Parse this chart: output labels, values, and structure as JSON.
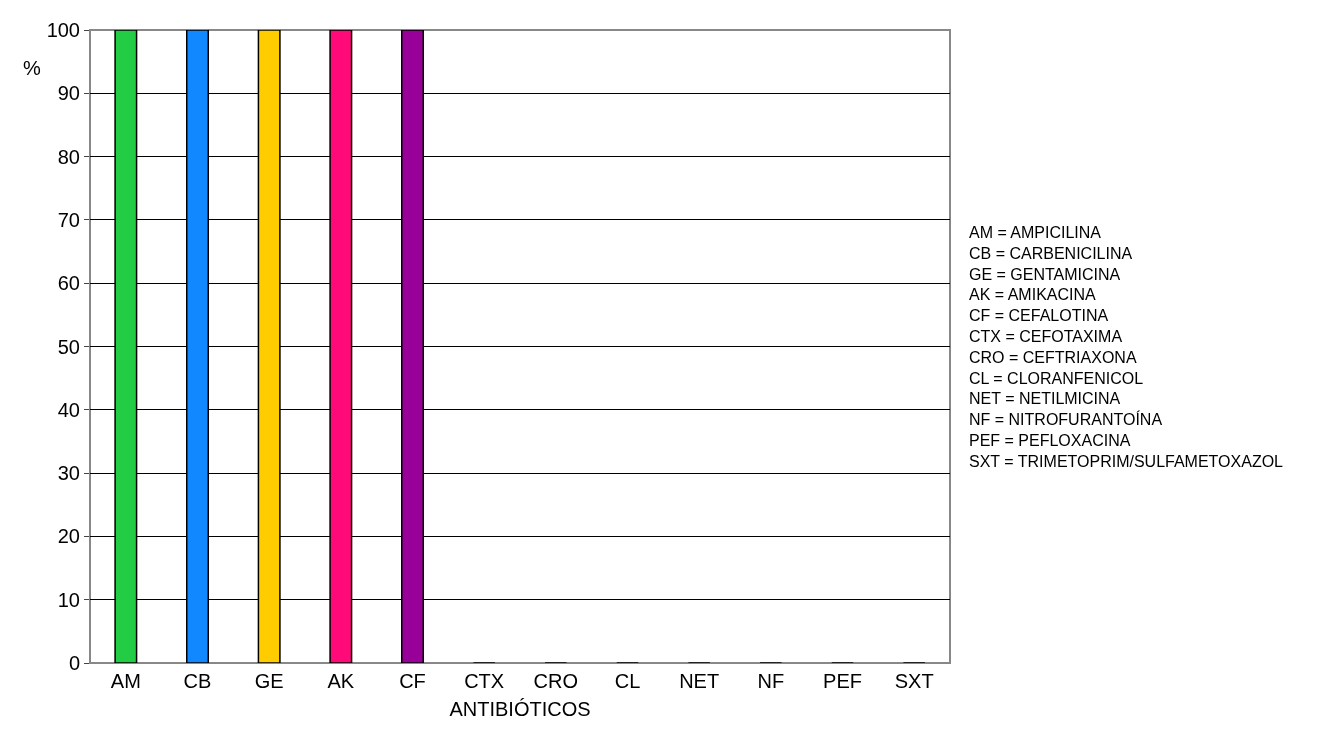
{
  "chart_data": {
    "type": "bar",
    "xlabel": "ANTIBIÓTICOS",
    "ylabel": "%",
    "categories": [
      "AM",
      "CB",
      "GE",
      "AK",
      "CF",
      "CTX",
      "CRO",
      "CL",
      "NET",
      "NF",
      "PEF",
      "SXT"
    ],
    "values": [
      100,
      100,
      100,
      100,
      100,
      0,
      0,
      0,
      0,
      0,
      0,
      0
    ],
    "colors": [
      "#22cc44",
      "#1188ff",
      "#ffcc00",
      "#ff0a78",
      "#990099",
      "#000000",
      "#000000",
      "#000000",
      "#000000",
      "#000000",
      "#000000",
      "#000000"
    ],
    "ylim": [
      0,
      100
    ],
    "yticks": [
      0,
      10,
      20,
      30,
      40,
      50,
      60,
      70,
      80,
      90,
      100
    ],
    "grid": "y",
    "legend": false,
    "annotations": [
      "AM = AMPICILINA",
      "CB = CARBENICILINA",
      "GE = GENTAMICINA",
      "AK = AMIKACINA",
      "CF = CEFALOTINA",
      "CTX = CEFOTAXIMA",
      "CRO = CEFTRIAXONA",
      "CL = CLORANFENICOL",
      "NET = NETILMICINA",
      "NF = NITROFURANTOÍNA",
      "PEF = PEFLOXACINA",
      "SXT = TRIMETOPRIM/SULFAMETOXAZOL"
    ]
  }
}
